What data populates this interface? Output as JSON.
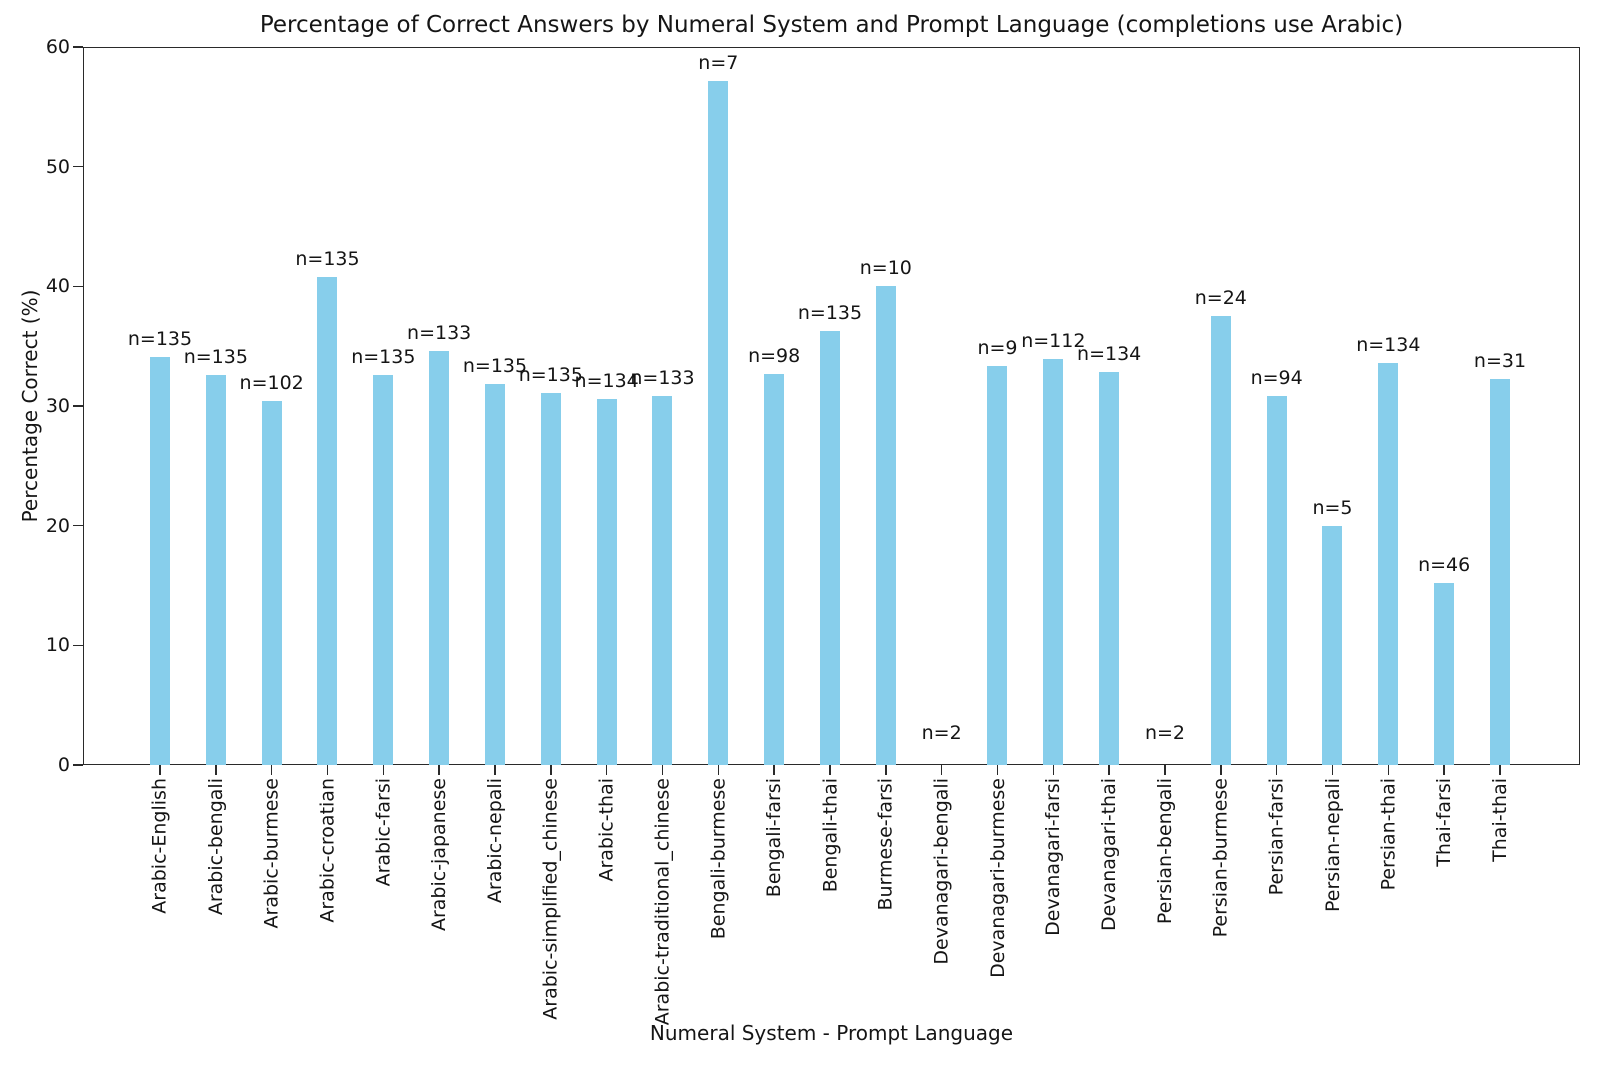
{
  "chart_data": {
    "type": "bar",
    "title": "Percentage of Correct Answers by Numeral System and Prompt Language (completions use Arabic)",
    "xlabel": "Numeral System - Prompt Language",
    "ylabel": "Percentage Correct (%)",
    "ylim": [
      0,
      60
    ],
    "yticks": [
      0,
      10,
      20,
      30,
      40,
      50,
      60
    ],
    "grid": false,
    "legend": null,
    "bar_color": "#87CEEB",
    "axis_color": "#2a2a2a",
    "text_color": "#151515",
    "categories": [
      "Arabic-English",
      "Arabic-bengali",
      "Arabic-burmese",
      "Arabic-croatian",
      "Arabic-farsi",
      "Arabic-japanese",
      "Arabic-nepali",
      "Arabic-simplified_chinese",
      "Arabic-thai",
      "Arabic-traditional_chinese",
      "Bengali-burmese",
      "Bengali-farsi",
      "Bengali-thai",
      "Burmese-farsi",
      "Devanagari-bengali",
      "Devanagari-burmese",
      "Devanagari-farsi",
      "Devanagari-thai",
      "Persian-bengali",
      "Persian-burmese",
      "Persian-farsi",
      "Persian-nepali",
      "Persian-thai",
      "Thai-farsi",
      "Thai-thai"
    ],
    "values": [
      34.07,
      32.59,
      30.39,
      40.74,
      32.59,
      34.59,
      31.85,
      31.11,
      30.6,
      30.83,
      57.14,
      32.65,
      36.3,
      40.0,
      0.0,
      33.33,
      33.93,
      32.84,
      0.0,
      37.5,
      30.85,
      20.0,
      33.58,
      15.22,
      32.26
    ],
    "counts": [
      135,
      135,
      102,
      135,
      135,
      133,
      135,
      135,
      134,
      133,
      7,
      98,
      135,
      10,
      2,
      9,
      112,
      134,
      2,
      24,
      94,
      5,
      134,
      46,
      31
    ],
    "bar_labels": [
      "n=135",
      "n=135",
      "n=102",
      "n=135",
      "n=135",
      "n=133",
      "n=135",
      "n=135",
      "n=134",
      "n=133",
      "n=7",
      "n=98",
      "n=135",
      "n=10",
      "n=2",
      "n=9",
      "n=112",
      "n=134",
      "n=2",
      "n=24",
      "n=94",
      "n=5",
      "n=134",
      "n=46",
      "n=31"
    ]
  }
}
